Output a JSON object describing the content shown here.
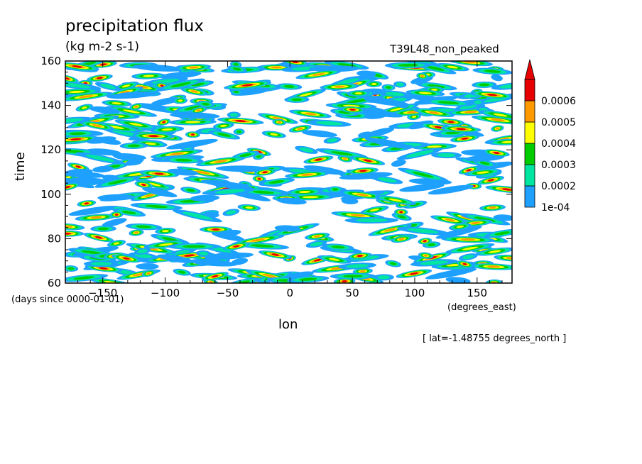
{
  "chart_data": {
    "type": "heatmap",
    "title": "precipitation flux",
    "units": "(kg m-2 s-1)",
    "dataset_label": "T39L48_non_peaked",
    "xlabel": "lon",
    "xlabel_units": "(degrees_east)",
    "ylabel": "time",
    "ylabel_units": "(days since 0000-01-01)",
    "annotation": "[ lat=-1.48755 degrees_north ]",
    "xlim": [
      -180,
      178
    ],
    "ylim": [
      60,
      160
    ],
    "x_ticks": [
      -150,
      -100,
      -50,
      0,
      50,
      100,
      150
    ],
    "y_ticks": [
      60,
      80,
      100,
      120,
      140,
      160
    ],
    "colorbar": {
      "levels": [
        0.0001,
        0.0002,
        0.0003,
        0.0004,
        0.0005,
        0.0006
      ],
      "labels": [
        "1e-04",
        "0.0002",
        "0.0003",
        "0.0004",
        "0.0005",
        "0.0006"
      ],
      "colors": [
        "#1ea0ff",
        "#00e6a0",
        "#00cc00",
        "#ffff00",
        "#ff9900",
        "#e60000"
      ],
      "extend": "max"
    },
    "grid": false
  }
}
